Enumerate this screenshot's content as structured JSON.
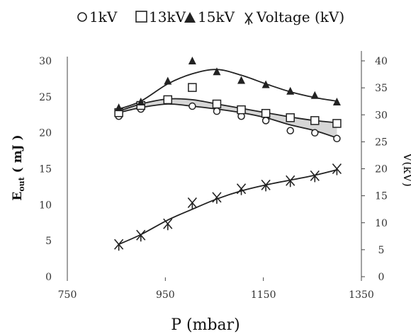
{
  "chart_data": {
    "type": "scatter",
    "title": "",
    "xlabel": "P (mbar)",
    "ylabel_left": {
      "main": "E",
      "sub": "out",
      "rest": " ( mJ )"
    },
    "ylabel_right": "V(kV)",
    "xlim": [
      750,
      1350
    ],
    "ylim_left": [
      0,
      30
    ],
    "ylim_right": [
      0,
      40
    ],
    "x_ticks": [
      "750",
      "950",
      "1150",
      "1350"
    ],
    "y_left_ticks": [
      "0",
      "5",
      "10",
      "15",
      "20",
      "25",
      "30"
    ],
    "y_right_ticks": [
      "0",
      "5",
      "10",
      "15",
      "20",
      "25",
      "30",
      "35",
      "40"
    ],
    "legend_position": "top",
    "series": [
      {
        "name": "1kV",
        "marker": "circle",
        "axis": "left",
        "x": [
          855,
          900,
          955,
          1005,
          1055,
          1105,
          1155,
          1205,
          1255,
          1300
        ],
        "y": [
          22.3,
          23.3,
          24.6,
          23.7,
          23.0,
          22.3,
          21.7,
          20.3,
          20.0,
          19.2
        ]
      },
      {
        "name": "13kV",
        "marker": "square",
        "axis": "left",
        "x": [
          855,
          900,
          955,
          1005,
          1055,
          1105,
          1155,
          1205,
          1255,
          1300
        ],
        "y": [
          22.8,
          23.8,
          24.6,
          26.3,
          24.0,
          23.2,
          22.7,
          22.1,
          21.7,
          21.3
        ]
      },
      {
        "name": "15kV",
        "marker": "triangle",
        "axis": "left",
        "x": [
          855,
          900,
          955,
          1005,
          1055,
          1105,
          1155,
          1205,
          1255,
          1300
        ],
        "y": [
          23.5,
          24.3,
          27.2,
          30.0,
          28.5,
          27.3,
          26.7,
          25.8,
          25.2,
          24.3
        ]
      },
      {
        "name": "Voltage (kV)",
        "marker": "asterisk",
        "axis": "right",
        "x": [
          855,
          900,
          955,
          1005,
          1055,
          1105,
          1155,
          1205,
          1255,
          1300
        ],
        "y": [
          6.0,
          7.7,
          9.8,
          13.7,
          14.7,
          16.3,
          17.0,
          17.8,
          18.7,
          20.0
        ]
      }
    ],
    "fit_curves": [
      {
        "series": "1kV",
        "x": [
          855,
          900,
          955,
          1005,
          1055,
          1105,
          1155,
          1205,
          1255,
          1300
        ],
        "y": [
          22.8,
          23.5,
          24.0,
          23.7,
          23.3,
          22.8,
          22.1,
          21.1,
          20.3,
          19.3
        ]
      },
      {
        "series": "13kV",
        "x": [
          855,
          900,
          955,
          1005,
          1055,
          1105,
          1155,
          1205,
          1255,
          1300
        ],
        "y": [
          23.0,
          24.0,
          24.7,
          24.6,
          24.0,
          23.4,
          22.8,
          22.2,
          21.7,
          21.4
        ]
      },
      {
        "series": "15kV",
        "x": [
          855,
          900,
          955,
          1005,
          1055,
          1105,
          1155,
          1205,
          1255,
          1300
        ],
        "y": [
          23.3,
          24.4,
          26.8,
          28.2,
          28.8,
          28.0,
          26.8,
          25.7,
          24.9,
          24.4
        ]
      },
      {
        "series": "Voltage (kV)",
        "x": [
          855,
          900,
          955,
          1005,
          1055,
          1105,
          1155,
          1205,
          1255,
          1300
        ],
        "y": [
          6.0,
          7.8,
          10.5,
          12.5,
          14.4,
          15.9,
          17.0,
          17.9,
          18.8,
          19.8
        ]
      }
    ],
    "colors": {
      "ink": "#222222",
      "band_fill": "#d6d6d6"
    }
  }
}
